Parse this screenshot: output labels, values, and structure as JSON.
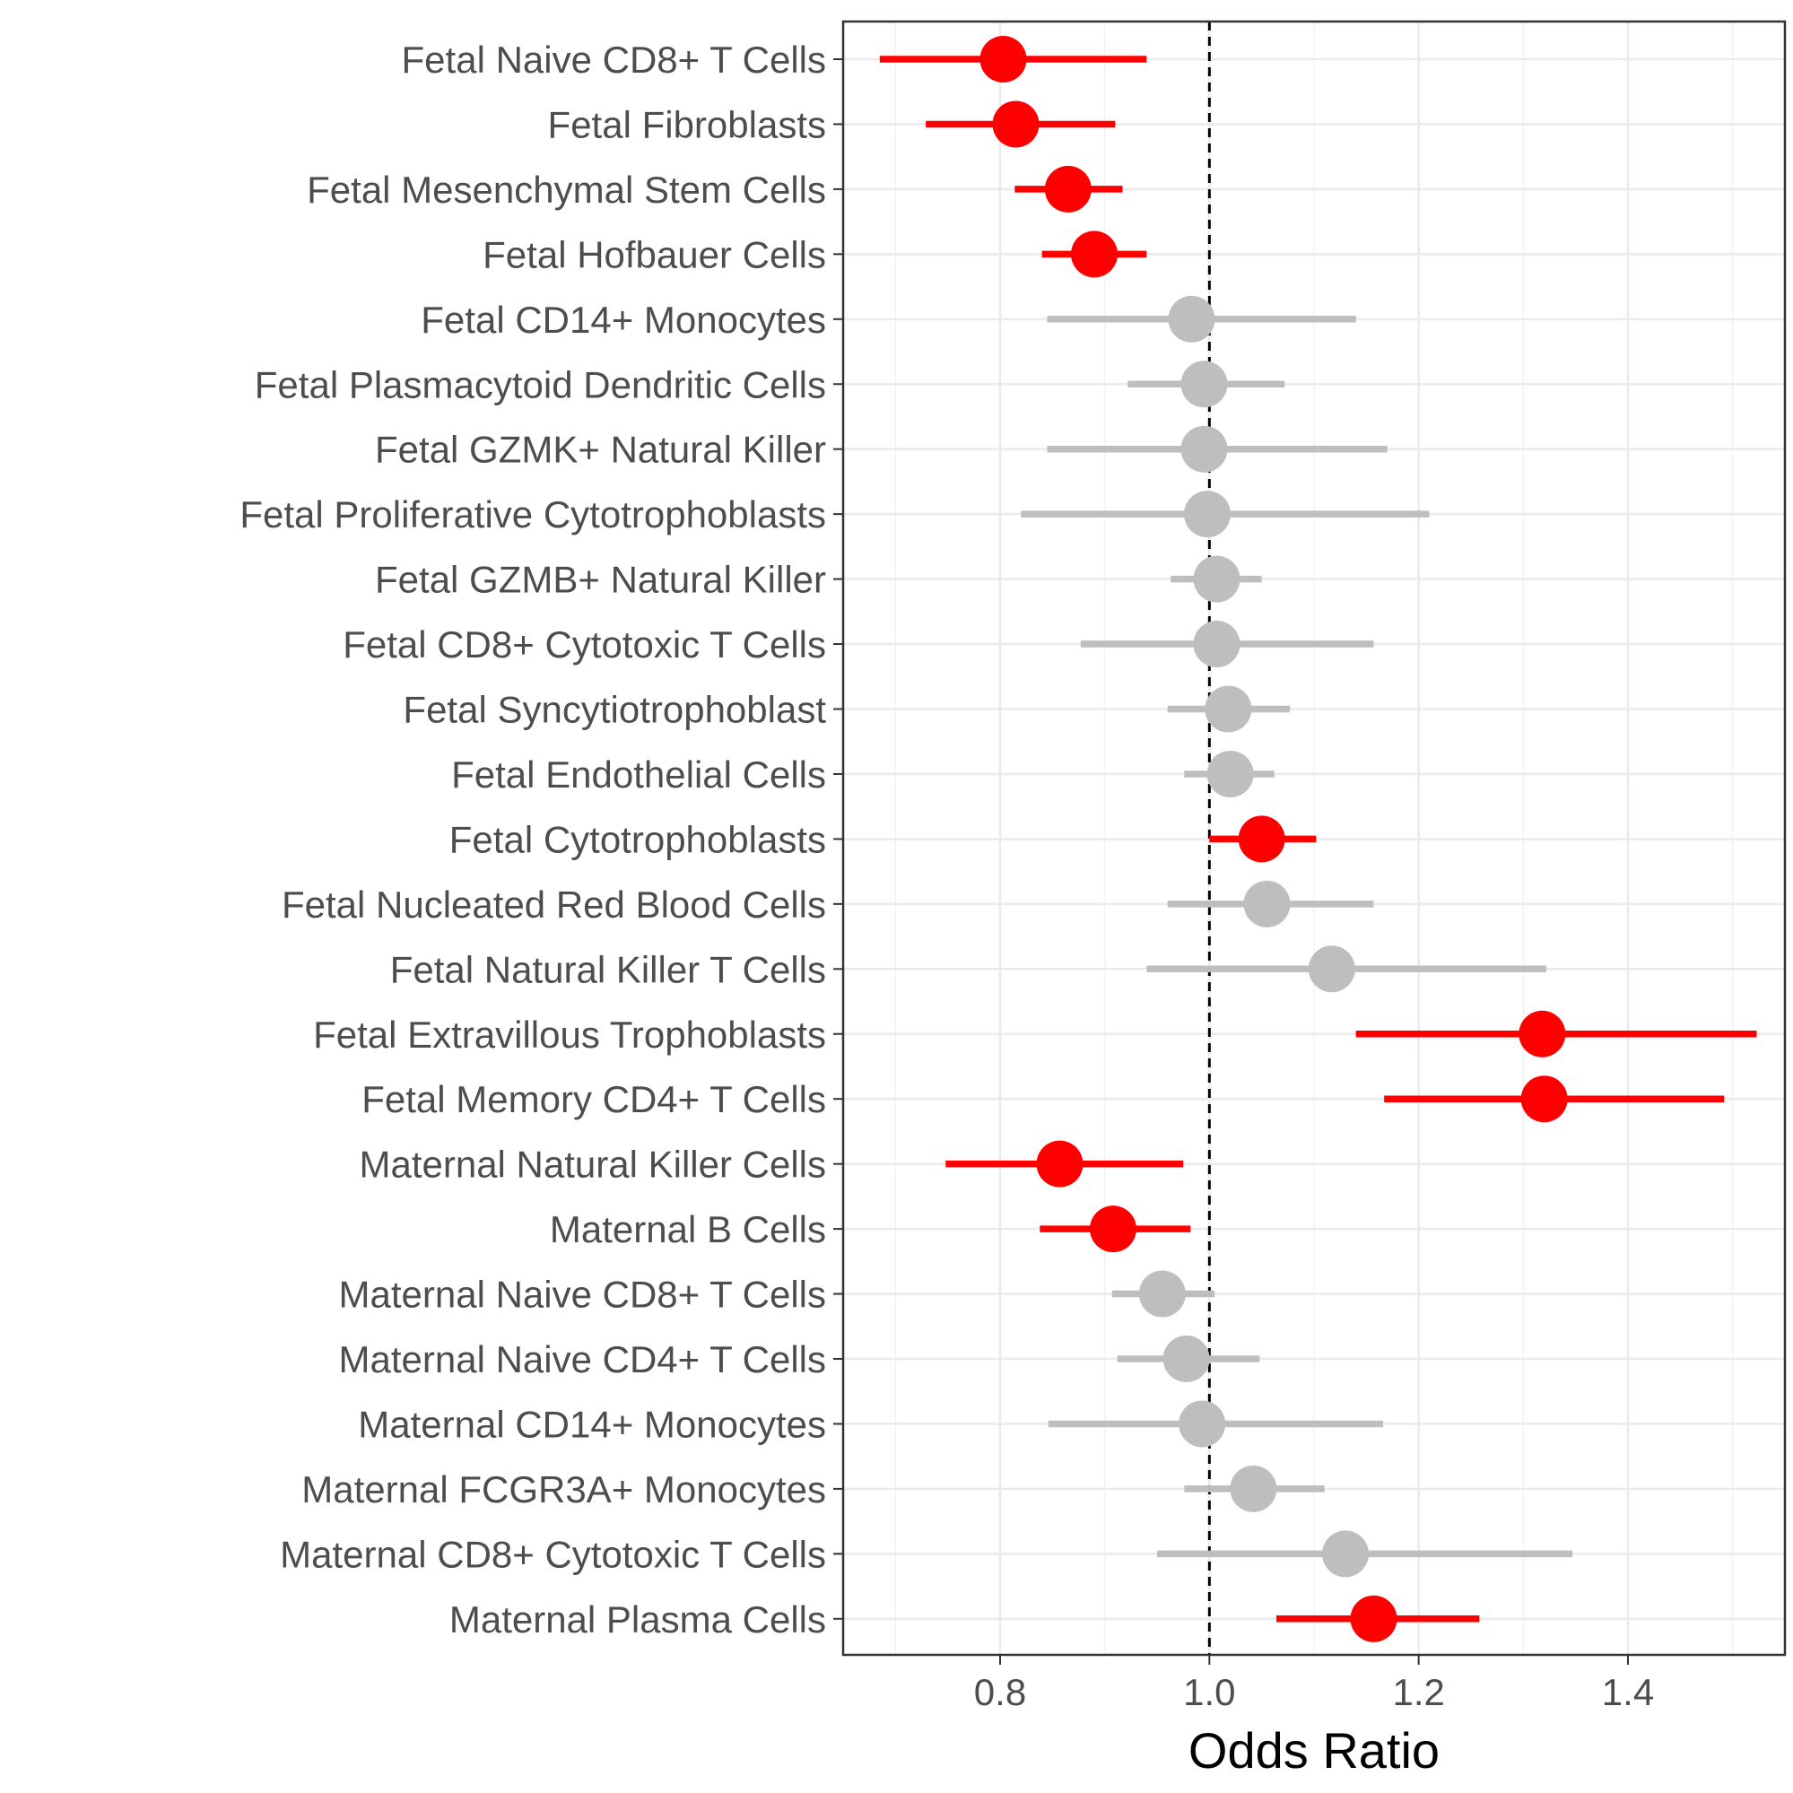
{
  "chart_data": {
    "type": "forest",
    "xlabel": "Odds Ratio",
    "xlim": [
      0.65,
      1.55
    ],
    "xticks": [
      0.8,
      1.0,
      1.2,
      1.4
    ],
    "xtick_labels": [
      "0.8",
      "1.0",
      "1.2",
      "1.4"
    ],
    "reference_line": 1.0,
    "grid": true,
    "colors": {
      "significant": "#ff0000",
      "nonsignificant": "#bebebe"
    },
    "rows": [
      {
        "label": "Fetal Naive CD8+ T Cells",
        "or": 0.803,
        "lo": 0.685,
        "hi": 0.94,
        "significant": true
      },
      {
        "label": "Fetal Fibroblasts",
        "or": 0.815,
        "lo": 0.729,
        "hi": 0.91,
        "significant": true
      },
      {
        "label": "Fetal Mesenchymal Stem Cells",
        "or": 0.865,
        "lo": 0.814,
        "hi": 0.917,
        "significant": true
      },
      {
        "label": "Fetal Hofbauer Cells",
        "or": 0.89,
        "lo": 0.84,
        "hi": 0.94,
        "significant": true
      },
      {
        "label": "Fetal CD14+ Monocytes",
        "or": 0.983,
        "lo": 0.845,
        "hi": 1.14,
        "significant": false
      },
      {
        "label": "Fetal Plasmacytoid Dendritic Cells",
        "or": 0.995,
        "lo": 0.922,
        "hi": 1.072,
        "significant": false
      },
      {
        "label": "Fetal GZMK+ Natural Killer",
        "or": 0.995,
        "lo": 0.845,
        "hi": 1.17,
        "significant": false
      },
      {
        "label": "Fetal Proliferative Cytotrophoblasts",
        "or": 0.998,
        "lo": 0.82,
        "hi": 1.21,
        "significant": false
      },
      {
        "label": "Fetal GZMB+ Natural Killer",
        "or": 1.007,
        "lo": 0.963,
        "hi": 1.05,
        "significant": false
      },
      {
        "label": "Fetal CD8+ Cytotoxic T Cells",
        "or": 1.007,
        "lo": 0.877,
        "hi": 1.157,
        "significant": false
      },
      {
        "label": "Fetal Syncytiotrophoblast",
        "or": 1.018,
        "lo": 0.96,
        "hi": 1.077,
        "significant": false
      },
      {
        "label": "Fetal Endothelial Cells",
        "or": 1.02,
        "lo": 0.976,
        "hi": 1.062,
        "significant": false
      },
      {
        "label": "Fetal Cytotrophoblasts",
        "or": 1.05,
        "lo": 1.0,
        "hi": 1.102,
        "significant": true
      },
      {
        "label": "Fetal Nucleated Red Blood Cells",
        "or": 1.055,
        "lo": 0.96,
        "hi": 1.157,
        "significant": false
      },
      {
        "label": "Fetal Natural Killer T Cells",
        "or": 1.117,
        "lo": 0.94,
        "hi": 1.322,
        "significant": false
      },
      {
        "label": "Fetal Extravillous Trophoblasts",
        "or": 1.318,
        "lo": 1.14,
        "hi": 1.523,
        "significant": true
      },
      {
        "label": "Fetal Memory CD4+ T Cells",
        "or": 1.32,
        "lo": 1.167,
        "hi": 1.492,
        "significant": true
      },
      {
        "label": "Maternal Natural Killer Cells",
        "or": 0.857,
        "lo": 0.748,
        "hi": 0.975,
        "significant": true
      },
      {
        "label": "Maternal B Cells",
        "or": 0.908,
        "lo": 0.838,
        "hi": 0.982,
        "significant": true
      },
      {
        "label": "Maternal Naive CD8+ T Cells",
        "or": 0.955,
        "lo": 0.907,
        "hi": 1.005,
        "significant": false
      },
      {
        "label": "Maternal Naive CD4+ T Cells",
        "or": 0.978,
        "lo": 0.912,
        "hi": 1.048,
        "significant": false
      },
      {
        "label": "Maternal CD14+ Monocytes",
        "or": 0.993,
        "lo": 0.846,
        "hi": 1.166,
        "significant": false
      },
      {
        "label": "Maternal FCGR3A+ Monocytes",
        "or": 1.042,
        "lo": 0.976,
        "hi": 1.11,
        "significant": false
      },
      {
        "label": "Maternal CD8+ Cytotoxic T Cells",
        "or": 1.13,
        "lo": 0.95,
        "hi": 1.347,
        "significant": false
      },
      {
        "label": "Maternal Plasma Cells",
        "or": 1.157,
        "lo": 1.064,
        "hi": 1.258,
        "significant": true
      }
    ]
  }
}
